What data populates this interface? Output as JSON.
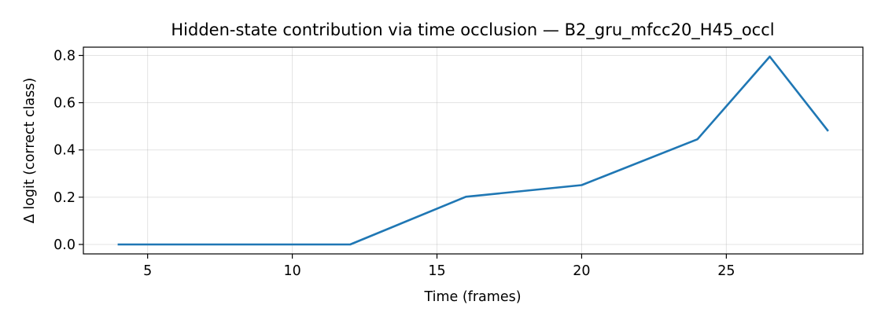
{
  "chart_data": {
    "type": "line",
    "title": "Hidden-state contribution via time occlusion — B2_gru_mfcc20_H45_occl",
    "xlabel": "Time (frames)",
    "ylabel": "Δ logit (correct class)",
    "xlim": [
      2.78,
      29.72
    ],
    "ylim": [
      -0.04,
      0.835
    ],
    "xticks": [
      5,
      10,
      15,
      20,
      25
    ],
    "yticks": [
      0.0,
      0.2,
      0.4,
      0.6,
      0.8
    ],
    "xtick_labels": [
      "5",
      "10",
      "15",
      "20",
      "25"
    ],
    "ytick_labels": [
      "0.0",
      "0.2",
      "0.4",
      "0.6",
      "0.8"
    ],
    "grid": true,
    "series": [
      {
        "color": "#1f77b4",
        "x": [
          4,
          12,
          16,
          20,
          24,
          26.5,
          28.5
        ],
        "y": [
          0.0,
          0.0,
          0.202,
          0.251,
          0.445,
          0.795,
          0.483
        ]
      }
    ]
  }
}
